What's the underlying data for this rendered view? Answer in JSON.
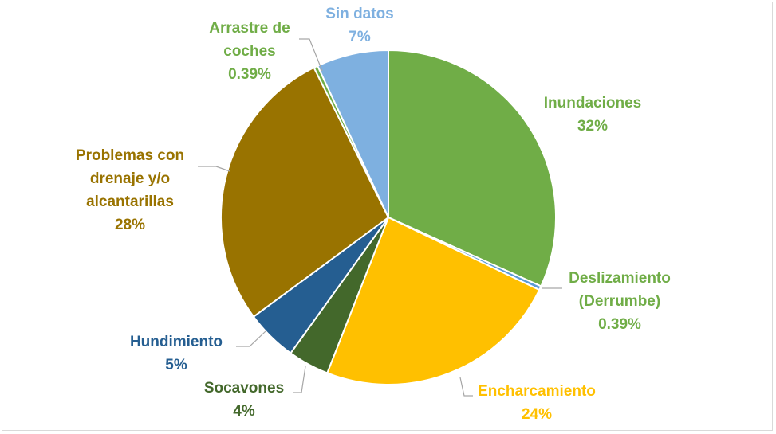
{
  "chart_data": {
    "type": "pie",
    "title": "",
    "slices": [
      {
        "label_lines": [
          "Inundaciones"
        ],
        "value": 32,
        "value_text": "32%",
        "color": "#70ad47"
      },
      {
        "label_lines": [
          "Deslizamiento",
          "(Derrumbe)"
        ],
        "value": 0.39,
        "value_text": "0.39%",
        "color": "#5b9bd5"
      },
      {
        "label_lines": [
          "Encharcamiento"
        ],
        "value": 24,
        "value_text": "24%",
        "color": "#ffc000"
      },
      {
        "label_lines": [
          "Socavones"
        ],
        "value": 4,
        "value_text": "4%",
        "color": "#43682b"
      },
      {
        "label_lines": [
          "Hundimiento"
        ],
        "value": 5,
        "value_text": "5%",
        "color": "#255e91"
      },
      {
        "label_lines": [
          "Problemas con",
          "drenaje y/o",
          "alcantarillas"
        ],
        "value": 28,
        "value_text": "28%",
        "color": "#997300"
      },
      {
        "label_lines": [
          "Arrastre de",
          "coches"
        ],
        "value": 0.39,
        "value_text": "0.39%",
        "color": "#70ad47"
      },
      {
        "label_lines": [
          "Sin datos"
        ],
        "value": 7,
        "value_text": "7%",
        "color": "#7eb0e0"
      }
    ],
    "label_colors": [
      "#70ad47",
      "#70ad47",
      "#ffc000",
      "#43682b",
      "#255e91",
      "#997300",
      "#70ad47",
      "#7eb0e0"
    ],
    "legend": "none"
  }
}
